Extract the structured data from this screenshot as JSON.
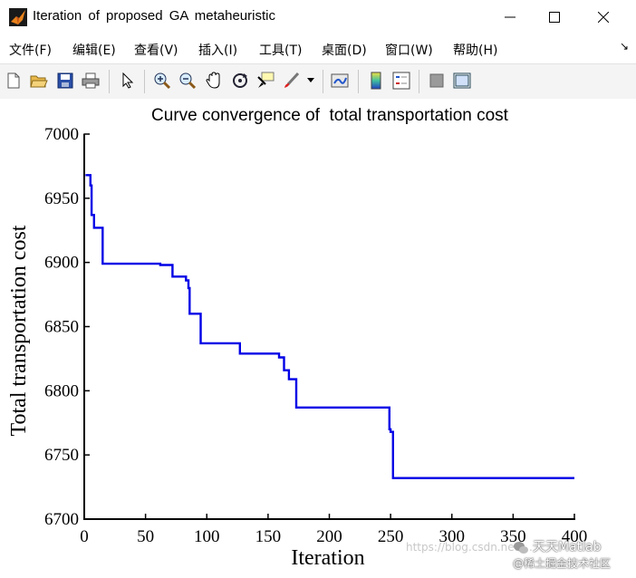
{
  "window": {
    "title": "Iteration of proposed GA metaheuristic",
    "icon": "matlab-figure-icon"
  },
  "menu": [
    "文件(F)",
    "编辑(E)",
    "查看(V)",
    "插入(I)",
    "工具(T)",
    "桌面(D)",
    "窗口(W)",
    "帮助(H)"
  ],
  "toolbar": [
    "new-figure-icon",
    "open-folder-icon",
    "save-icon",
    "print-icon",
    "pointer-icon",
    "zoom-in-icon",
    "zoom-out-icon",
    "pan-hand-icon",
    "rotate-3d-icon",
    "data-cursor-icon",
    "brush-icon",
    "link-plot-icon",
    "colorbar-icon",
    "legend-icon",
    "hide-plot-tools-icon",
    "show-plot-tools-icon"
  ],
  "watermark": {
    "url": "https://blog.csdn.net/...",
    "brand": "天天Matlab",
    "credit": "@稀土掘金技术社区"
  },
  "chart_data": {
    "type": "line",
    "title": "Curve convergence of  total transportation cost",
    "xlabel": "Iteration",
    "ylabel": "Total transportation cost",
    "xlim": [
      0,
      400
    ],
    "ylim": [
      6700,
      7000
    ],
    "xticks": [
      0,
      50,
      100,
      150,
      200,
      250,
      300,
      350,
      400
    ],
    "yticks": [
      6700,
      6750,
      6800,
      6850,
      6900,
      6950,
      7000
    ],
    "grid": false,
    "line_color": "#0000e6",
    "series": [
      {
        "x": [
          1,
          5,
          5,
          6,
          6,
          8,
          8,
          15,
          15,
          62,
          62,
          72,
          72,
          83,
          83,
          85,
          85,
          86,
          86,
          95,
          95,
          127,
          127,
          159,
          159,
          163,
          163,
          167,
          167,
          170,
          170,
          173,
          173,
          249,
          249,
          250,
          250,
          252,
          252,
          400
        ],
        "y": [
          6968,
          6968,
          6960,
          6960,
          6937,
          6937,
          6927,
          6927,
          6899,
          6899,
          6898,
          6898,
          6889,
          6889,
          6886,
          6886,
          6880,
          6880,
          6860,
          6860,
          6837,
          6837,
          6829,
          6829,
          6826,
          6826,
          6816,
          6816,
          6809,
          6809,
          6809,
          6809,
          6787,
          6787,
          6770,
          6770,
          6768,
          6768,
          6732,
          6732
        ]
      }
    ]
  }
}
